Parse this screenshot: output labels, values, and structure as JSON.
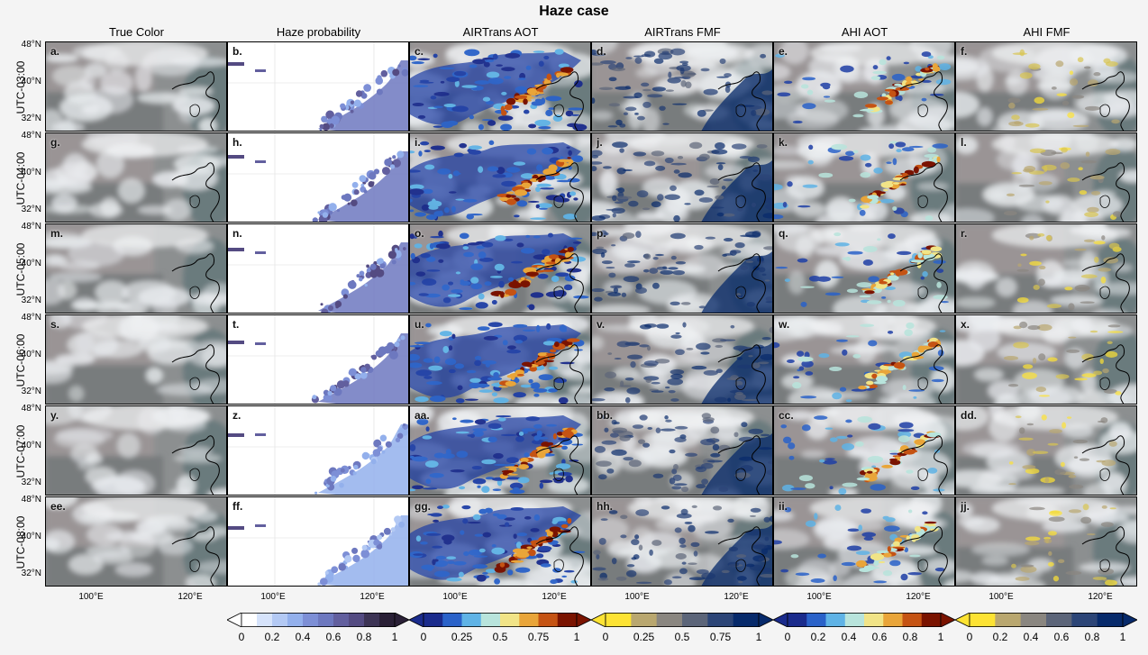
{
  "figure": {
    "title": "Haze case",
    "columns": [
      "True Color",
      "Haze probability",
      "AIRTrans AOT",
      "AIRTrans FMF",
      "AHI AOT",
      "AHI FMF"
    ],
    "rows": [
      "UTC-03:00",
      "UTC-04:00",
      "UTC-05:00",
      "UTC-06:00",
      "UTC-07:00",
      "UTC-08:00"
    ],
    "panel_letters": [
      [
        "a.",
        "b.",
        "c.",
        "d.",
        "e.",
        "f."
      ],
      [
        "g.",
        "h.",
        "i.",
        "j.",
        "k.",
        "l."
      ],
      [
        "m.",
        "n.",
        "o.",
        "p.",
        "q.",
        "r."
      ],
      [
        "s.",
        "t.",
        "u.",
        "v.",
        "w.",
        "x."
      ],
      [
        "y.",
        "z.",
        "aa.",
        "bb.",
        "cc.",
        "dd."
      ],
      [
        "ee.",
        "ff.",
        "gg.",
        "hh.",
        "ii.",
        "jj."
      ]
    ],
    "lat_labels": [
      "48°N",
      "40°N",
      "32°N"
    ],
    "lon_labels": [
      "100°E",
      "120°E"
    ],
    "colorbars": [
      {
        "name": "haze-probability",
        "ticks": [
          "0",
          "0.2",
          "0.4",
          "0.6",
          "0.8",
          "1"
        ],
        "colors": [
          "#ffffff",
          "#d6e3fb",
          "#b3c9f4",
          "#93b0ec",
          "#7d8fd6",
          "#6d78bf",
          "#625f9e",
          "#544b82",
          "#3d3455",
          "#2a2036"
        ]
      },
      {
        "name": "airtrans-aot",
        "ticks": [
          "0",
          "0.25",
          "0.5",
          "0.75",
          "1"
        ],
        "colors": [
          "#1a2b8c",
          "#2a62c9",
          "#5fb3e6",
          "#b8e4dc",
          "#f1e487",
          "#e9a539",
          "#c55313",
          "#7a1300"
        ]
      },
      {
        "name": "airtrans-fmf",
        "ticks": [
          "0",
          "0.25",
          "0.5",
          "0.75",
          "1"
        ],
        "colors": [
          "#fde333",
          "#b9a76f",
          "#8a8680",
          "#5c6579",
          "#2c4577",
          "#072a6b"
        ]
      },
      {
        "name": "ahi-aot",
        "ticks": [
          "0",
          "0.2",
          "0.4",
          "0.6",
          "0.8",
          "1"
        ],
        "colors": [
          "#1a2b8c",
          "#2a62c9",
          "#5fb3e6",
          "#b8e4dc",
          "#f1e487",
          "#e9a539",
          "#c55313",
          "#7a1300"
        ]
      },
      {
        "name": "ahi-fmf",
        "ticks": [
          "0",
          "0.2",
          "0.4",
          "0.6",
          "0.8",
          "1"
        ],
        "colors": [
          "#fde333",
          "#b9a76f",
          "#8a8680",
          "#5c6579",
          "#2c4577",
          "#072a6b"
        ]
      }
    ]
  }
}
